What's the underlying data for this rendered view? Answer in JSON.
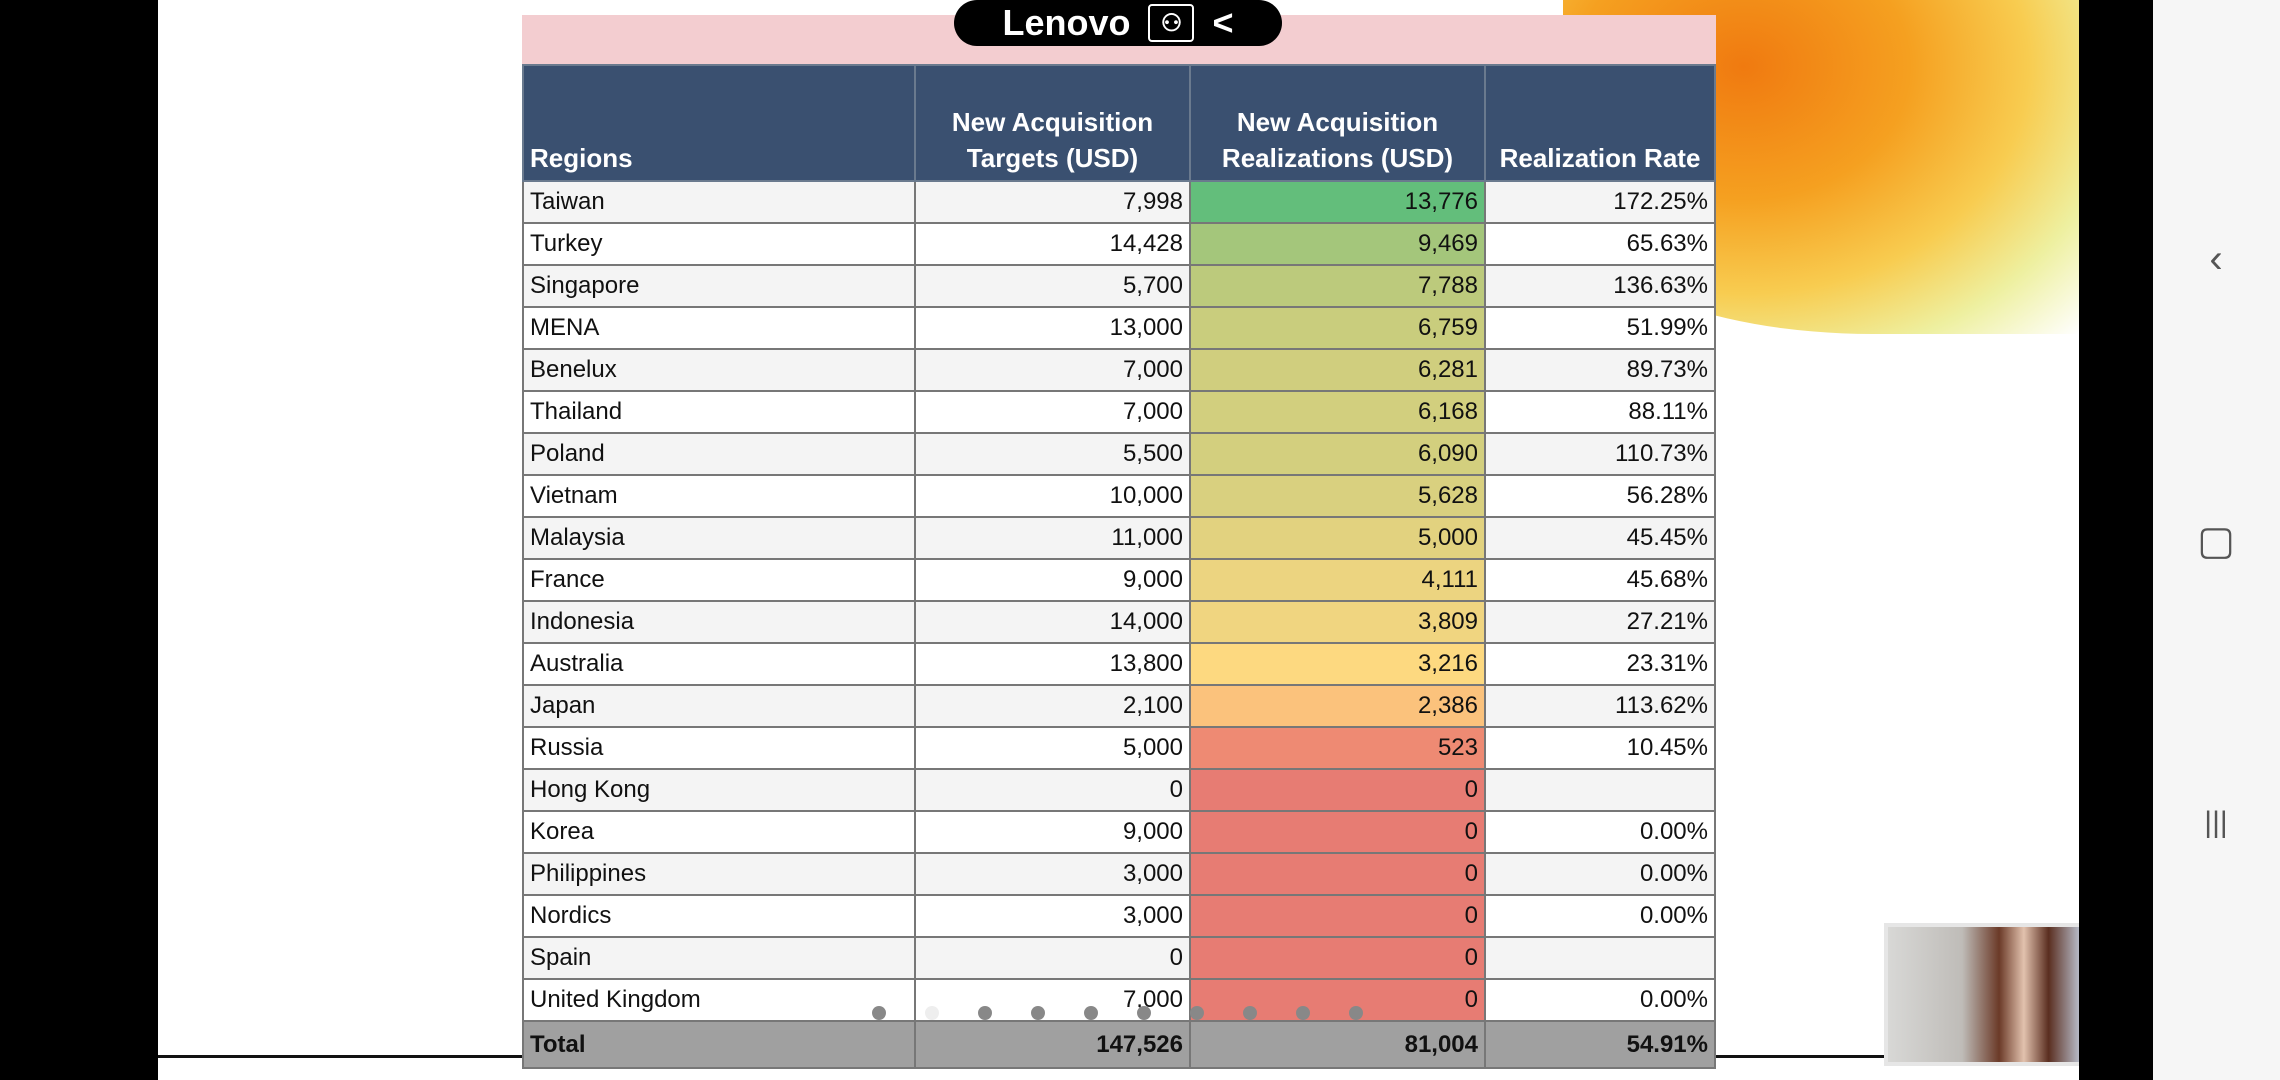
{
  "logo": {
    "brand": "Lenovo",
    "collapse": "<"
  },
  "table": {
    "headers": [
      "Regions",
      "New Acquisition Targets (USD)",
      "New Acquisition Realizations (USD)",
      "Realization Rate"
    ],
    "rows": [
      {
        "region": "Taiwan",
        "target": "7,998",
        "realization": "13,776",
        "rate": "172.25%",
        "color": "#63be7b"
      },
      {
        "region": "Turkey",
        "target": "14,428",
        "realization": "9,469",
        "rate": "65.63%",
        "color": "#a4c67b"
      },
      {
        "region": "Singapore",
        "target": "5,700",
        "realization": "7,788",
        "rate": "136.63%",
        "color": "#bcca7c"
      },
      {
        "region": "MENA",
        "target": "13,000",
        "realization": "6,759",
        "rate": "51.99%",
        "color": "#c9cd7d"
      },
      {
        "region": "Benelux",
        "target": "7,000",
        "realization": "6,281",
        "rate": "89.73%",
        "color": "#d0ce7e"
      },
      {
        "region": "Thailand",
        "target": "7,000",
        "realization": "6,168",
        "rate": "88.11%",
        "color": "#d2cf7e"
      },
      {
        "region": "Poland",
        "target": "5,500",
        "realization": "6,090",
        "rate": "110.73%",
        "color": "#d3cf7e"
      },
      {
        "region": "Vietnam",
        "target": "10,000",
        "realization": "5,628",
        "rate": "56.28%",
        "color": "#d9d07f"
      },
      {
        "region": "Malaysia",
        "target": "11,000",
        "realization": "5,000",
        "rate": "45.45%",
        "color": "#e2d27f"
      },
      {
        "region": "France",
        "target": "9,000",
        "realization": "4,111",
        "rate": "45.68%",
        "color": "#ecd480"
      },
      {
        "region": "Indonesia",
        "target": "14,000",
        "realization": "3,809",
        "rate": "27.21%",
        "color": "#f0d580"
      },
      {
        "region": "Australia",
        "target": "13,800",
        "realization": "3,216",
        "rate": "23.31%",
        "color": "#fdd980"
      },
      {
        "region": "Japan",
        "target": "2,100",
        "realization": "2,386",
        "rate": "113.62%",
        "color": "#fbc27c"
      },
      {
        "region": "Russia",
        "target": "5,000",
        "realization": "523",
        "rate": "10.45%",
        "color": "#ee8a73"
      },
      {
        "region": "Hong Kong",
        "target": "0",
        "realization": "0",
        "rate": "",
        "color": "#e77c73"
      },
      {
        "region": "Korea",
        "target": "9,000",
        "realization": "0",
        "rate": "0.00%",
        "color": "#e77c73"
      },
      {
        "region": "Philippines",
        "target": "3,000",
        "realization": "0",
        "rate": "0.00%",
        "color": "#e77c73"
      },
      {
        "region": "Nordics",
        "target": "3,000",
        "realization": "0",
        "rate": "0.00%",
        "color": "#e77c73"
      },
      {
        "region": "Spain",
        "target": "0",
        "realization": "0",
        "rate": "",
        "color": "#e77c73"
      },
      {
        "region": "United Kingdom",
        "target": "7,000",
        "realization": "0",
        "rate": "0.00%",
        "color": "#e77c73"
      }
    ],
    "total": {
      "label": "Total",
      "target": "147,526",
      "realization": "81,004",
      "rate": "54.91%"
    }
  },
  "pagination": {
    "count": 10,
    "active": 2
  },
  "nav": {
    "back_icon": "‹",
    "home_icon": "▢",
    "recents_icon": "|||"
  }
}
